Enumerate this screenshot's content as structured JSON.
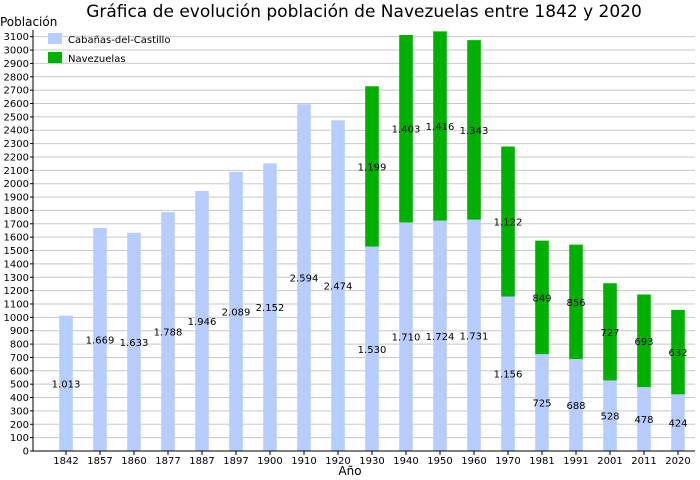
{
  "chart_data": {
    "type": "bar",
    "stacked": true,
    "title": "Gráfica de evolución población de Navezuelas entre 1842 y 2020",
    "xlabel": "Año",
    "ylabel": "Población",
    "ylim": [
      0,
      3150
    ],
    "ytick_step": 100,
    "grid": true,
    "legend_position": "top-left",
    "categories": [
      "1842",
      "1857",
      "1860",
      "1877",
      "1887",
      "1897",
      "1900",
      "1910",
      "1920",
      "1930",
      "1940",
      "1950",
      "1960",
      "1970",
      "1981",
      "1991",
      "2001",
      "2011",
      "2020"
    ],
    "series": [
      {
        "name": "Cabañas-del-Castillo",
        "color": "#b7cdff",
        "values": [
          1013,
          1669,
          1633,
          1788,
          1946,
          2089,
          2152,
          2594,
          2474,
          1530,
          1710,
          1724,
          1731,
          1156,
          725,
          688,
          528,
          478,
          424
        ],
        "labels": [
          "1.013",
          "1.669",
          "1.633",
          "1.788",
          "1.946",
          "2.089",
          "2.152",
          "2.594",
          "2.474",
          "1.530",
          "1.710",
          "1.724",
          "1.731",
          "1.156",
          "725",
          "688",
          "528",
          "478",
          "424"
        ]
      },
      {
        "name": "Navezuelas",
        "color": "#00b000",
        "values": [
          0,
          0,
          0,
          0,
          0,
          0,
          0,
          0,
          0,
          1199,
          1403,
          1416,
          1343,
          1122,
          849,
          856,
          727,
          693,
          632
        ],
        "labels": [
          "",
          "",
          "",
          "",
          "",
          "",
          "",
          "",
          "",
          "1.199",
          "1.403",
          "1.416",
          "1.343",
          "1.122",
          "849",
          "856",
          "727",
          "693",
          "632"
        ]
      }
    ]
  }
}
